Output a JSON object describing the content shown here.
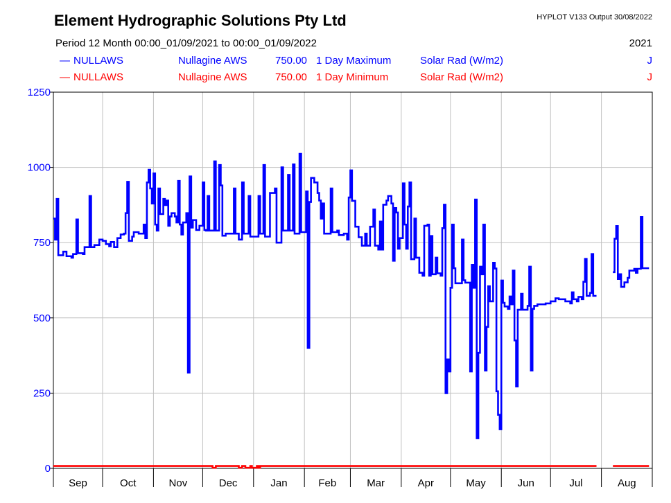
{
  "header": {
    "title": "Element Hydrographic Solutions Pty Ltd",
    "version": "HYPLOT V133  Output 30/08/2022",
    "period": "Period   12 Month  00:00_01/09/2021 to 00:00_01/09/2022",
    "year": "2021"
  },
  "legend": [
    {
      "marker": "—",
      "site": "NULLAWS",
      "name": "Nullagine AWS",
      "value": "750.00",
      "stat": "1 Day Maximum",
      "variable": "Solar Rad (W/m2)",
      "flag": "J",
      "color": "#0000ff"
    },
    {
      "marker": "—",
      "site": "NULLAWS",
      "name": "Nullagine AWS",
      "value": "750.00",
      "stat": "1 Day Minimum",
      "variable": "Solar Rad (W/m2)",
      "flag": "J",
      "color": "#ff0000"
    }
  ],
  "chart_data": {
    "type": "line",
    "title": "Element Hydrographic Solutions Pty Ltd",
    "xlabel": "",
    "ylabel": "Solar Rad (W/m2)",
    "xlim": [
      0,
      365
    ],
    "ylim": [
      0,
      1250
    ],
    "yticks": [
      0,
      250,
      500,
      750,
      1000,
      1250
    ],
    "month_labels": [
      "Sep",
      "Oct",
      "Nov",
      "Dec",
      "Jan",
      "Feb",
      "Mar",
      "Apr",
      "May",
      "Jun",
      "Jul",
      "Aug"
    ],
    "month_starts": [
      0,
      30,
      61,
      91,
      122,
      153,
      181,
      212,
      242,
      273,
      303,
      334,
      365
    ],
    "grid": true,
    "step": true,
    "series": [
      {
        "name": "NULLAWS 1 Day Maximum",
        "color": "#0000ff",
        "end": 331,
        "resume": [
          341,
          363
        ],
        "points": [
          [
            0,
            830
          ],
          [
            1,
            760
          ],
          [
            2,
            895
          ],
          [
            3,
            708
          ],
          [
            6,
            720
          ],
          [
            8,
            705
          ],
          [
            11,
            700
          ],
          [
            12,
            712
          ],
          [
            14,
            827
          ],
          [
            15,
            715
          ],
          [
            18,
            712
          ],
          [
            19,
            735
          ],
          [
            22,
            905
          ],
          [
            23,
            735
          ],
          [
            25,
            742
          ],
          [
            28,
            760
          ],
          [
            30,
            756
          ],
          [
            32,
            745
          ],
          [
            34,
            738
          ],
          [
            35,
            752
          ],
          [
            37,
            735
          ],
          [
            39,
            765
          ],
          [
            41,
            777
          ],
          [
            43,
            780
          ],
          [
            44,
            848
          ],
          [
            45,
            952
          ],
          [
            46,
            756
          ],
          [
            48,
            770
          ],
          [
            49,
            785
          ],
          [
            52,
            780
          ],
          [
            55,
            810
          ],
          [
            56,
            765
          ],
          [
            57,
            950
          ],
          [
            58,
            992
          ],
          [
            59,
            930
          ],
          [
            60,
            880
          ],
          [
            61,
            980
          ],
          [
            62,
            810
          ],
          [
            63,
            790
          ],
          [
            64,
            930
          ],
          [
            65,
            845
          ],
          [
            67,
            895
          ],
          [
            68,
            875
          ],
          [
            69,
            890
          ],
          [
            70,
            806
          ],
          [
            71,
            837
          ],
          [
            72,
            848
          ],
          [
            74,
            837
          ],
          [
            75,
            817
          ],
          [
            76,
            955
          ],
          [
            77,
            810
          ],
          [
            78,
            777
          ],
          [
            79,
            817
          ],
          [
            81,
            848
          ],
          [
            82,
            318
          ],
          [
            83,
            970
          ],
          [
            84,
            800
          ],
          [
            85,
            825
          ],
          [
            87,
            792
          ],
          [
            89,
            806
          ],
          [
            91,
            950
          ],
          [
            92,
            792
          ],
          [
            93,
            790
          ],
          [
            94,
            905
          ],
          [
            95,
            790
          ],
          [
            98,
            1020
          ],
          [
            99,
            790
          ],
          [
            101,
            1008
          ],
          [
            102,
            940
          ],
          [
            103,
            773
          ],
          [
            105,
            780
          ],
          [
            110,
            930
          ],
          [
            111,
            780
          ],
          [
            113,
            760
          ],
          [
            115,
            950
          ],
          [
            116,
            780
          ],
          [
            119,
            905
          ],
          [
            120,
            770
          ],
          [
            125,
            905
          ],
          [
            126,
            780
          ],
          [
            128,
            1008
          ],
          [
            129,
            770
          ],
          [
            132,
            915
          ],
          [
            135,
            930
          ],
          [
            136,
            750
          ],
          [
            139,
            1000
          ],
          [
            140,
            790
          ],
          [
            143,
            975
          ],
          [
            144,
            790
          ],
          [
            146,
            1010
          ],
          [
            147,
            780
          ],
          [
            150,
            1045
          ],
          [
            151,
            785
          ],
          [
            154,
            920
          ],
          [
            155,
            400
          ],
          [
            156,
            885
          ],
          [
            157,
            965
          ],
          [
            159,
            950
          ],
          [
            161,
            915
          ],
          [
            162,
            890
          ],
          [
            163,
            830
          ],
          [
            164,
            880
          ],
          [
            165,
            780
          ],
          [
            169,
            930
          ],
          [
            170,
            785
          ],
          [
            173,
            790
          ],
          [
            174,
            775
          ],
          [
            177,
            780
          ],
          [
            179,
            760
          ],
          [
            180,
            900
          ],
          [
            181,
            990
          ],
          [
            182,
            889
          ],
          [
            184,
            803
          ],
          [
            186,
            768
          ],
          [
            188,
            740
          ],
          [
            190,
            780
          ],
          [
            191,
            740
          ],
          [
            193,
            803
          ],
          [
            195,
            860
          ],
          [
            196,
            740
          ],
          [
            198,
            727
          ],
          [
            199,
            820
          ],
          [
            200,
            727
          ],
          [
            201,
            876
          ],
          [
            203,
            890
          ],
          [
            204,
            905
          ],
          [
            206,
            880
          ],
          [
            207,
            690
          ],
          [
            208,
            865
          ],
          [
            209,
            850
          ],
          [
            210,
            730
          ],
          [
            211,
            765
          ],
          [
            213,
            947
          ],
          [
            214,
            810
          ],
          [
            215,
            730
          ],
          [
            216,
            870
          ],
          [
            217,
            950
          ],
          [
            218,
            695
          ],
          [
            220,
            830
          ],
          [
            221,
            700
          ],
          [
            223,
            650
          ],
          [
            225,
            640
          ],
          [
            226,
            806
          ],
          [
            228,
            810
          ],
          [
            229,
            640
          ],
          [
            230,
            772
          ],
          [
            231,
            645
          ],
          [
            233,
            700
          ],
          [
            234,
            648
          ],
          [
            236,
            640
          ],
          [
            237,
            798
          ],
          [
            238,
            876
          ],
          [
            239,
            250
          ],
          [
            240,
            362
          ],
          [
            241,
            322
          ],
          [
            242,
            600
          ],
          [
            243,
            810
          ],
          [
            244,
            665
          ],
          [
            245,
            615
          ],
          [
            249,
            760
          ],
          [
            250,
            625
          ],
          [
            251,
            617
          ],
          [
            254,
            322
          ],
          [
            255,
            676
          ],
          [
            256,
            600
          ],
          [
            257,
            893
          ],
          [
            258,
            100
          ],
          [
            259,
            384
          ],
          [
            260,
            670
          ],
          [
            261,
            645
          ],
          [
            262,
            810
          ],
          [
            263,
            325
          ],
          [
            264,
            470
          ],
          [
            265,
            605
          ],
          [
            266,
            555
          ],
          [
            268,
            683
          ],
          [
            269,
            664
          ],
          [
            270,
            256
          ],
          [
            271,
            178
          ],
          [
            272,
            130
          ],
          [
            273,
            624
          ],
          [
            274,
            550
          ],
          [
            275,
            538
          ],
          [
            277,
            530
          ],
          [
            278,
            571
          ],
          [
            279,
            545
          ],
          [
            280,
            657
          ],
          [
            281,
            425
          ],
          [
            282,
            272
          ],
          [
            283,
            527
          ],
          [
            285,
            580
          ],
          [
            286,
            527
          ],
          [
            289,
            540
          ],
          [
            290,
            670
          ],
          [
            291,
            325
          ],
          [
            292,
            530
          ],
          [
            293,
            540
          ],
          [
            295,
            545
          ],
          [
            300,
            548
          ],
          [
            303,
            555
          ],
          [
            306,
            565
          ],
          [
            308,
            562
          ],
          [
            312,
            555
          ],
          [
            315,
            548
          ],
          [
            316,
            585
          ],
          [
            317,
            562
          ],
          [
            319,
            555
          ],
          [
            320,
            570
          ],
          [
            322,
            562
          ],
          [
            323,
            620
          ],
          [
            324,
            696
          ],
          [
            325,
            573
          ],
          [
            327,
            583
          ],
          [
            328,
            712
          ],
          [
            329,
            573
          ],
          [
            341,
            652
          ],
          [
            342,
            763
          ],
          [
            343,
            805
          ],
          [
            344,
            629
          ],
          [
            345,
            645
          ],
          [
            346,
            603
          ],
          [
            348,
            618
          ],
          [
            350,
            633
          ],
          [
            351,
            657
          ],
          [
            354,
            663
          ],
          [
            355,
            650
          ],
          [
            356,
            663
          ],
          [
            358,
            835
          ],
          [
            359,
            665
          ]
        ]
      },
      {
        "name": "NULLAWS 1 Day Minimum",
        "color": "#ff0000",
        "end": 331,
        "resume": [
          341,
          363
        ],
        "points": [
          [
            0,
            8
          ],
          [
            97,
            2
          ],
          [
            99,
            8
          ],
          [
            113,
            2
          ],
          [
            115,
            8
          ],
          [
            117,
            2
          ],
          [
            120,
            8
          ],
          [
            121,
            2
          ],
          [
            124,
            8
          ],
          [
            125,
            2
          ],
          [
            126,
            8
          ],
          [
            341,
            8
          ]
        ]
      }
    ]
  }
}
